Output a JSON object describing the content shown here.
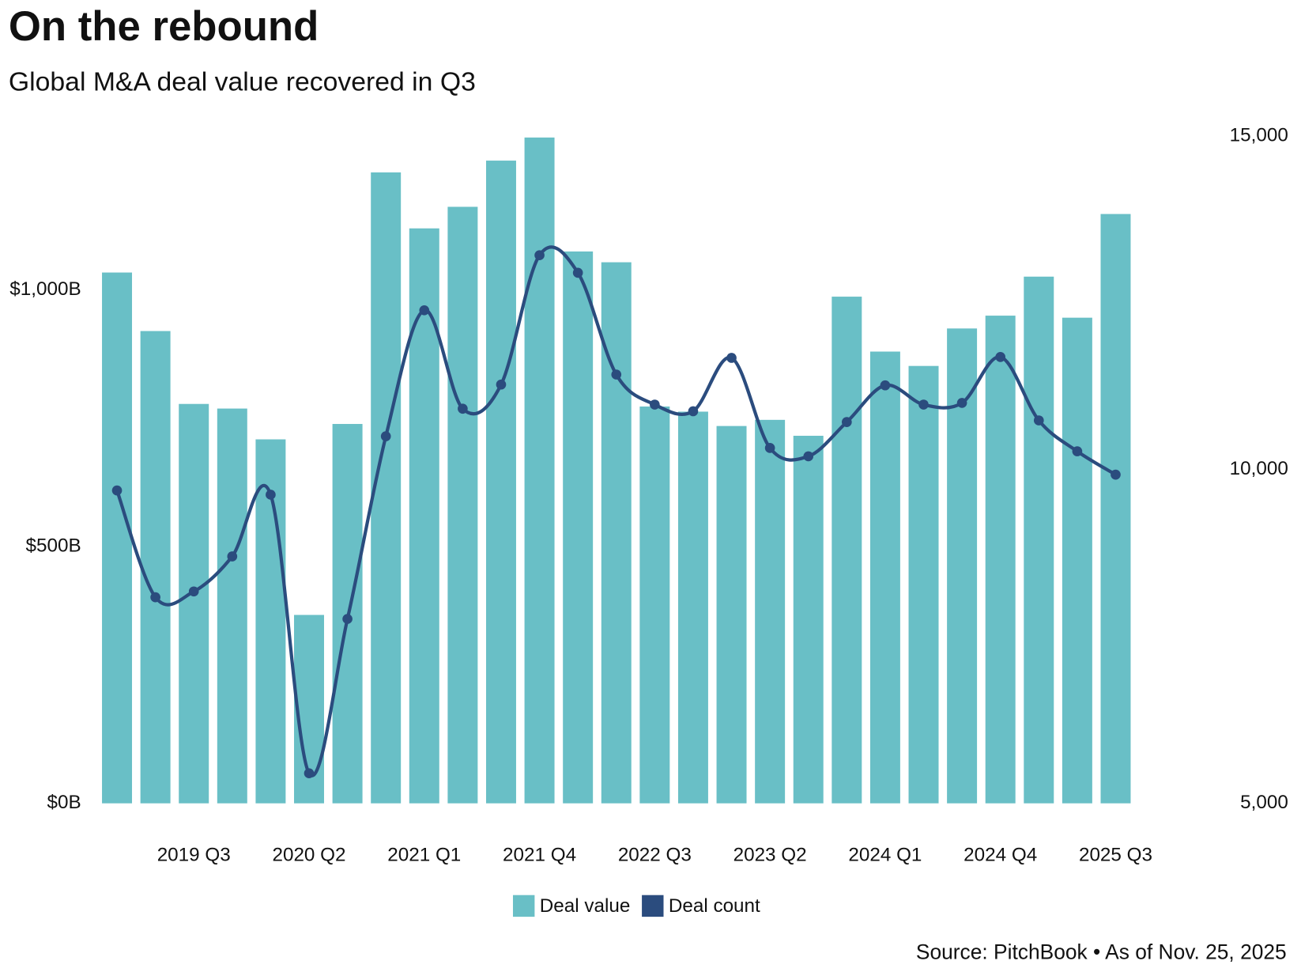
{
  "chart_data": {
    "type": "bar-line",
    "title": "On the rebound",
    "subtitle": "Global M&A deal value recovered in Q3",
    "source": "Source: PitchBook • As of Nov. 25, 2025",
    "categories": [
      null,
      null,
      "2019 Q3",
      null,
      null,
      "2020 Q2",
      null,
      null,
      "2021 Q1",
      null,
      null,
      "2021 Q4",
      null,
      null,
      "2022 Q3",
      null,
      null,
      "2023 Q2",
      null,
      null,
      "2024 Q1",
      null,
      null,
      "2024 Q4",
      null,
      null,
      "2025 Q3"
    ],
    "series": [
      {
        "name": "Deal value",
        "color": "#69bfc6",
        "type": "bar",
        "values": [
          1034,
          920,
          778,
          769,
          709,
          367,
          739,
          1229,
          1120,
          1162,
          1252,
          1297,
          1075,
          1054,
          773,
          763,
          735,
          747,
          716,
          987,
          880,
          852,
          925,
          950,
          1026,
          946,
          1148
        ]
      },
      {
        "name": "Deal count",
        "color": "#2b4c7e",
        "type": "line",
        "axis": "y2",
        "values": [
          9688,
          8088,
          8175,
          8700,
          9625,
          5450,
          7763,
          10500,
          12388,
          10913,
          11275,
          13213,
          12950,
          11425,
          10975,
          10875,
          11675,
          10325,
          10200,
          10713,
          11263,
          10975,
          11000,
          11688,
          10738,
          10275,
          9925
        ]
      }
    ],
    "ylim": [
      0,
      1300
    ],
    "yticks": [
      {
        "value": 0,
        "label": "$0B"
      },
      {
        "value": 500,
        "label": "$500B"
      },
      {
        "value": 1000,
        "label": "$1,000B"
      }
    ],
    "y2lim": [
      5000,
      15000
    ],
    "y2ticks": [
      {
        "value": 5000,
        "label": "5,000"
      },
      {
        "value": 10000,
        "label": "10,000"
      },
      {
        "value": 15000,
        "label": "15,000"
      }
    ],
    "grid": false,
    "legend": "bottom"
  }
}
